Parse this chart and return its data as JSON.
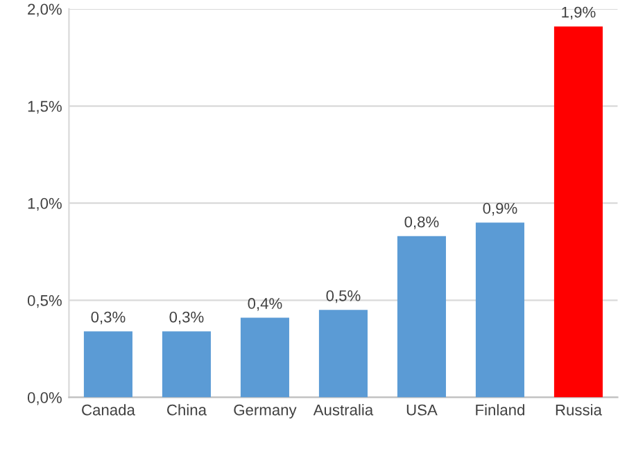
{
  "chart_data": {
    "type": "bar",
    "categories": [
      "Canada",
      "China",
      "Germany",
      "Australia",
      "USA",
      "Finland",
      "Russia"
    ],
    "values": [
      0.34,
      0.34,
      0.41,
      0.45,
      0.83,
      0.9,
      1.91
    ],
    "colors": [
      "#5b9bd5",
      "#5b9bd5",
      "#5b9bd5",
      "#5b9bd5",
      "#5b9bd5",
      "#5b9bd5",
      "#ff0000"
    ],
    "value_labels": [
      "0,3%",
      "0,3%",
      "0,4%",
      "0,5%",
      "0,8%",
      "0,9%",
      "1,9%"
    ],
    "ylim": [
      0,
      2.0
    ],
    "yticks": [
      {
        "value": 0,
        "label": "0,0%"
      },
      {
        "value": 0.5,
        "label": "0,5%"
      },
      {
        "value": 1.0,
        "label": "1,0%"
      },
      {
        "value": 1.5,
        "label": "1,5%"
      },
      {
        "value": 2.0,
        "label": "2,0%"
      }
    ],
    "grid": "y",
    "legend": false
  }
}
